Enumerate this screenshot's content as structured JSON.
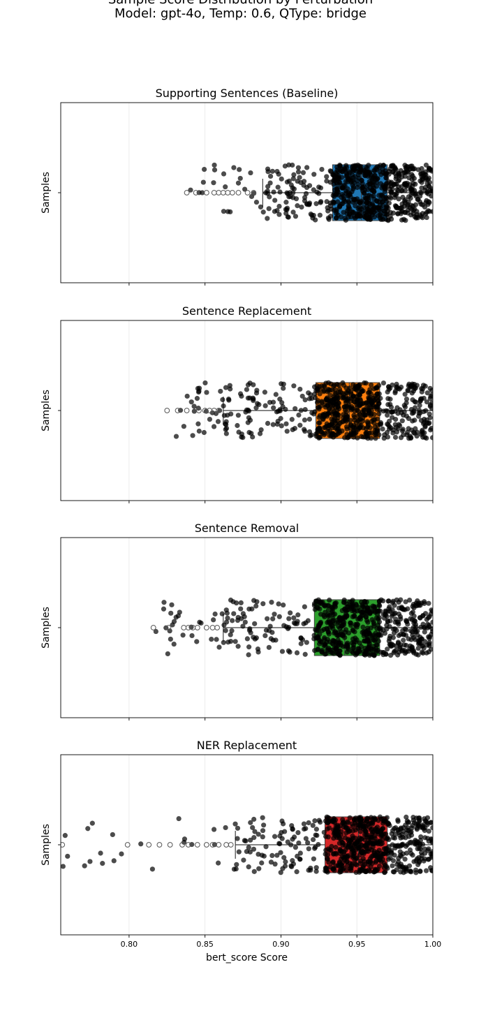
{
  "figure": {
    "title_line1": "Sample Score Distribution by Perturbation",
    "title_line2": "Model: gpt-4o, Temp: 0.6, QType: bridge"
  },
  "chart_data": [
    {
      "type": "box+strip",
      "title": "Supporting Sentences (Baseline)",
      "ylabel": "Samples",
      "xlabel": "",
      "xlim": [
        0.755,
        1.0
      ],
      "grid": "vertical",
      "box_color": "#1f77b4",
      "box": {
        "q1": 0.934,
        "median": 0.953,
        "q3": 0.97,
        "whisker_low": 0.888,
        "whisker_high": 1.0
      },
      "fliers": [
        0.838,
        0.844,
        0.851,
        0.856,
        0.859,
        0.862,
        0.865,
        0.868,
        0.872,
        0.878,
        0.882
      ],
      "strip": {
        "n_points": 700,
        "min": 0.837,
        "peak": 0.955,
        "max": 1.0
      }
    },
    {
      "type": "box+strip",
      "title": "Sentence Replacement",
      "ylabel": "Samples",
      "xlabel": "",
      "xlim": [
        0.755,
        1.0
      ],
      "grid": "vertical",
      "box_color": "#ff7f0e",
      "box": {
        "q1": 0.923,
        "median": 0.945,
        "q3": 0.965,
        "whisker_low": 0.862,
        "whisker_high": 1.0
      },
      "fliers": [
        0.825,
        0.832,
        0.838,
        0.846,
        0.85,
        0.853,
        0.856,
        0.859
      ],
      "strip": {
        "n_points": 700,
        "min": 0.825,
        "peak": 0.945,
        "max": 1.0
      }
    },
    {
      "type": "box+strip",
      "title": "Sentence Removal",
      "ylabel": "Samples",
      "xlabel": "",
      "xlim": [
        0.755,
        1.0
      ],
      "grid": "vertical",
      "box_color": "#2ca02c",
      "box": {
        "q1": 0.922,
        "median": 0.942,
        "q3": 0.965,
        "whisker_low": 0.862,
        "whisker_high": 1.0
      },
      "fliers": [
        0.816,
        0.826,
        0.836,
        0.839,
        0.842,
        0.845,
        0.851,
        0.855,
        0.858
      ],
      "strip": {
        "n_points": 700,
        "min": 0.815,
        "peak": 0.942,
        "max": 1.0
      }
    },
    {
      "type": "box+strip",
      "title": "NER Replacement",
      "ylabel": "Samples",
      "xlabel": "bert_score Score",
      "xlim": [
        0.755,
        1.0
      ],
      "xticks": [
        "0.80",
        "0.85",
        "0.90",
        "0.95",
        "1.00"
      ],
      "xtick_values": [
        0.8,
        0.85,
        0.9,
        0.95,
        1.0
      ],
      "grid": "vertical",
      "box_color": "#d62728",
      "box": {
        "q1": 0.929,
        "median": 0.951,
        "q3": 0.97,
        "whisker_low": 0.87,
        "whisker_high": 1.0
      },
      "fliers": [
        0.756,
        0.799,
        0.813,
        0.82,
        0.827,
        0.835,
        0.839,
        0.845,
        0.851,
        0.855,
        0.859,
        0.864,
        0.867
      ],
      "strip": {
        "n_points": 700,
        "min": 0.756,
        "peak": 0.95,
        "max": 1.0
      }
    }
  ]
}
